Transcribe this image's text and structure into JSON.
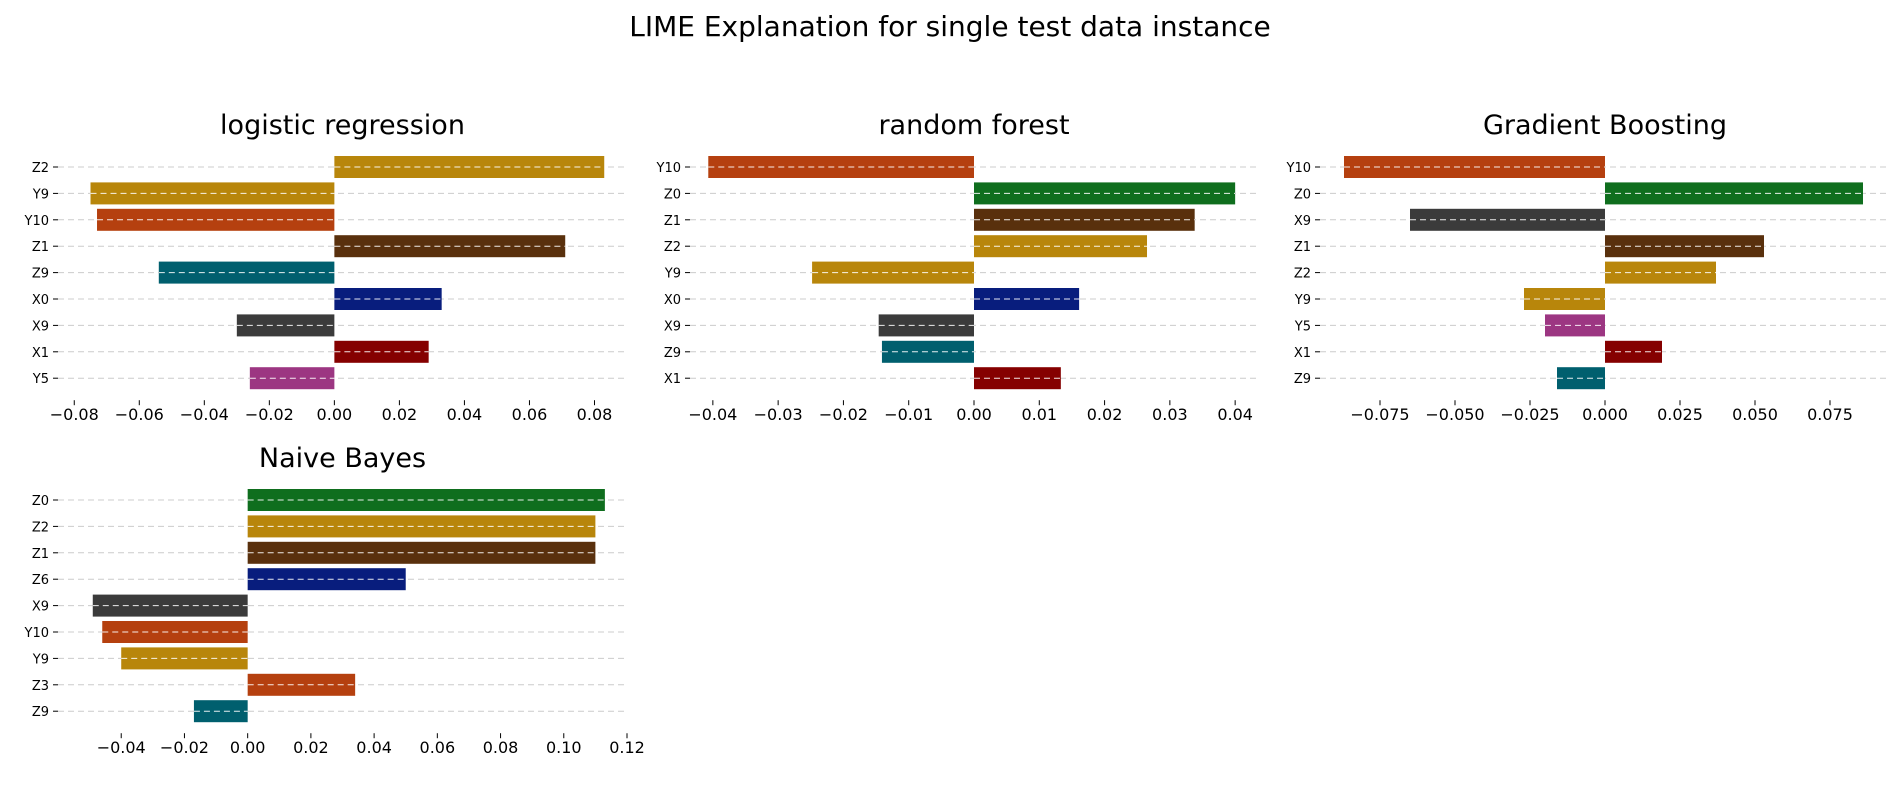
{
  "figure_title": "LIME Explanation for single test data instance",
  "colors": {
    "Z0": "#0f6e1e",
    "Z1": "#59300d",
    "Z2": "#b8860b",
    "Z3": "#b5400f",
    "Z6": "#081d7d",
    "Z9": "#005f6e",
    "X0": "#081d7d",
    "X1": "#850000",
    "X9": "#3b3b3b",
    "Y5": "#9c3682",
    "Y9": "#b8860b",
    "Y10": "#b5400f",
    "grid": "#cccccc",
    "text": "#000000"
  },
  "chart_data": [
    {
      "type": "bar",
      "orientation": "horizontal",
      "title": "logistic regression",
      "xlabel": "",
      "ylabel": "",
      "xlim": [
        -0.085,
        0.09
      ],
      "xticks": [
        -0.08,
        -0.06,
        -0.04,
        -0.02,
        0.0,
        0.02,
        0.04,
        0.06,
        0.08
      ],
      "xtick_labels": [
        "−0.08",
        "−0.06",
        "−0.04",
        "−0.02",
        "0.00",
        "0.02",
        "0.04",
        "0.06",
        "0.08"
      ],
      "categories": [
        "Z2",
        "Y9",
        "Y10",
        "Z1",
        "Z9",
        "X0",
        "X9",
        "X1",
        "Y5"
      ],
      "values": [
        0.083,
        -0.075,
        -0.073,
        0.071,
        -0.054,
        0.033,
        -0.03,
        0.029,
        -0.026
      ],
      "grid": "horizontal dashed"
    },
    {
      "type": "bar",
      "orientation": "horizontal",
      "title": "random forest",
      "xlabel": "",
      "ylabel": "",
      "xlim": [
        -0.0435,
        0.0435
      ],
      "xticks": [
        -0.04,
        -0.03,
        -0.02,
        -0.01,
        0.0,
        0.01,
        0.02,
        0.03,
        0.04
      ],
      "xtick_labels": [
        "−0.04",
        "−0.03",
        "−0.02",
        "−0.01",
        "0.00",
        "0.01",
        "0.02",
        "0.03",
        "0.04"
      ],
      "categories": [
        "Y10",
        "Z0",
        "Z1",
        "Z2",
        "Y9",
        "X0",
        "X9",
        "Z9",
        "X1"
      ],
      "values": [
        -0.0407,
        0.04,
        0.0338,
        0.0265,
        -0.0248,
        0.0161,
        -0.0146,
        -0.0141,
        0.0133
      ],
      "grid": "horizontal dashed"
    },
    {
      "type": "bar",
      "orientation": "horizontal",
      "title": "Gradient Boosting",
      "xlabel": "",
      "ylabel": "",
      "xlim": [
        -0.095,
        0.095
      ],
      "xticks": [
        -0.075,
        -0.05,
        -0.025,
        0.0,
        0.025,
        0.05,
        0.075
      ],
      "xtick_labels": [
        "−0.075",
        "−0.050",
        "−0.025",
        "0.000",
        "0.025",
        "0.050",
        "0.075"
      ],
      "categories": [
        "Y10",
        "Z0",
        "X9",
        "Z1",
        "Z2",
        "Y9",
        "Y5",
        "X1",
        "Z9"
      ],
      "values": [
        -0.087,
        0.086,
        -0.065,
        0.053,
        0.037,
        -0.027,
        -0.02,
        0.019,
        -0.016
      ],
      "grid": "horizontal dashed"
    },
    {
      "type": "bar",
      "orientation": "horizontal",
      "title": "Naive Bayes",
      "xlabel": "",
      "ylabel": "",
      "xlim": [
        -0.06,
        0.12
      ],
      "xticks": [
        -0.04,
        -0.02,
        0.0,
        0.02,
        0.04,
        0.06,
        0.08,
        0.1,
        0.12
      ],
      "xtick_labels": [
        "−0.04",
        "−0.02",
        "0.00",
        "0.02",
        "0.04",
        "0.06",
        "0.08",
        "0.10",
        "0.12"
      ],
      "categories": [
        "Z0",
        "Z2",
        "Z1",
        "Z6",
        "X9",
        "Y10",
        "Y9",
        "Z3",
        "Z9"
      ],
      "values": [
        0.113,
        0.11,
        0.11,
        0.05,
        -0.049,
        -0.046,
        -0.04,
        0.034,
        -0.017
      ],
      "grid": "horizontal dashed"
    }
  ]
}
